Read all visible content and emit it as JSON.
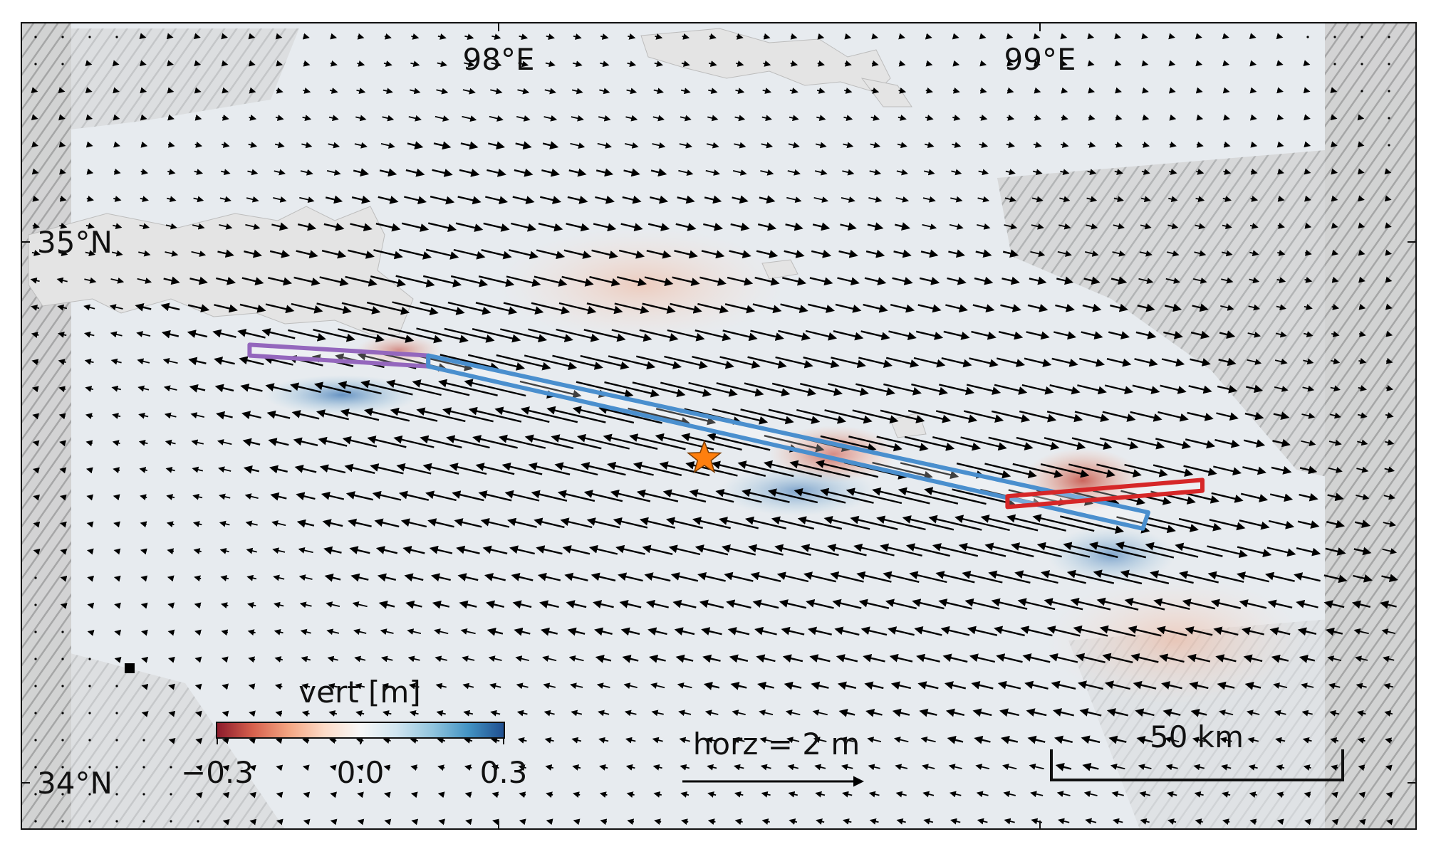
{
  "map": {
    "lon_labels": [
      {
        "text": "98°E",
        "lon": 98.0
      },
      {
        "text": "99°E",
        "lon": 99.0
      }
    ],
    "lat_labels": [
      {
        "text": "35°N",
        "lat": 35.0
      },
      {
        "text": "34°N",
        "lat": 34.0
      }
    ],
    "extent": {
      "lon_min": 97.1,
      "lon_max": 99.7,
      "lat_min": 33.9,
      "lat_max": 35.4
    },
    "epicenter": {
      "lon": 98.38,
      "lat": 34.6,
      "symbol": "star",
      "color": "#ff7f0e"
    },
    "fault_segments": [
      {
        "name_color": "#9467bd",
        "desc": "western segment",
        "corners": [
          [
            97.54,
            34.81
          ],
          [
            97.87,
            34.79
          ],
          [
            97.87,
            34.77
          ],
          [
            97.54,
            34.79
          ]
        ]
      },
      {
        "name_color": "#4a8fce",
        "desc": "main rupture",
        "corners": [
          [
            97.87,
            34.79
          ],
          [
            99.2,
            34.5
          ],
          [
            99.19,
            34.47
          ],
          [
            97.87,
            34.77
          ]
        ]
      },
      {
        "name_color": "#d62728",
        "desc": "eastern segment",
        "corners": [
          [
            98.94,
            34.53
          ],
          [
            99.3,
            34.56
          ],
          [
            99.3,
            34.54
          ],
          [
            98.94,
            34.51
          ]
        ]
      }
    ]
  },
  "colorbar": {
    "title": "vert [m]",
    "ticks": [
      "−0.3",
      "0.0",
      "0.3"
    ],
    "range": [
      -0.3,
      0.3
    ],
    "colormap": [
      "#8b1a2b",
      "#d6604d",
      "#f4a582",
      "#fddbc7",
      "#f7f7f7",
      "#d1e5f0",
      "#92c5de",
      "#4393c3",
      "#1f4e8f"
    ]
  },
  "arrow_scale": {
    "label": "horz = 2 m",
    "value_m": 2
  },
  "scale_bar": {
    "label": "50 km",
    "length_km": 50
  },
  "colors": {
    "frame": "#111111",
    "arrow": "#000000",
    "lake": "#e4e4e4",
    "terrain": "#d8d8d8"
  }
}
